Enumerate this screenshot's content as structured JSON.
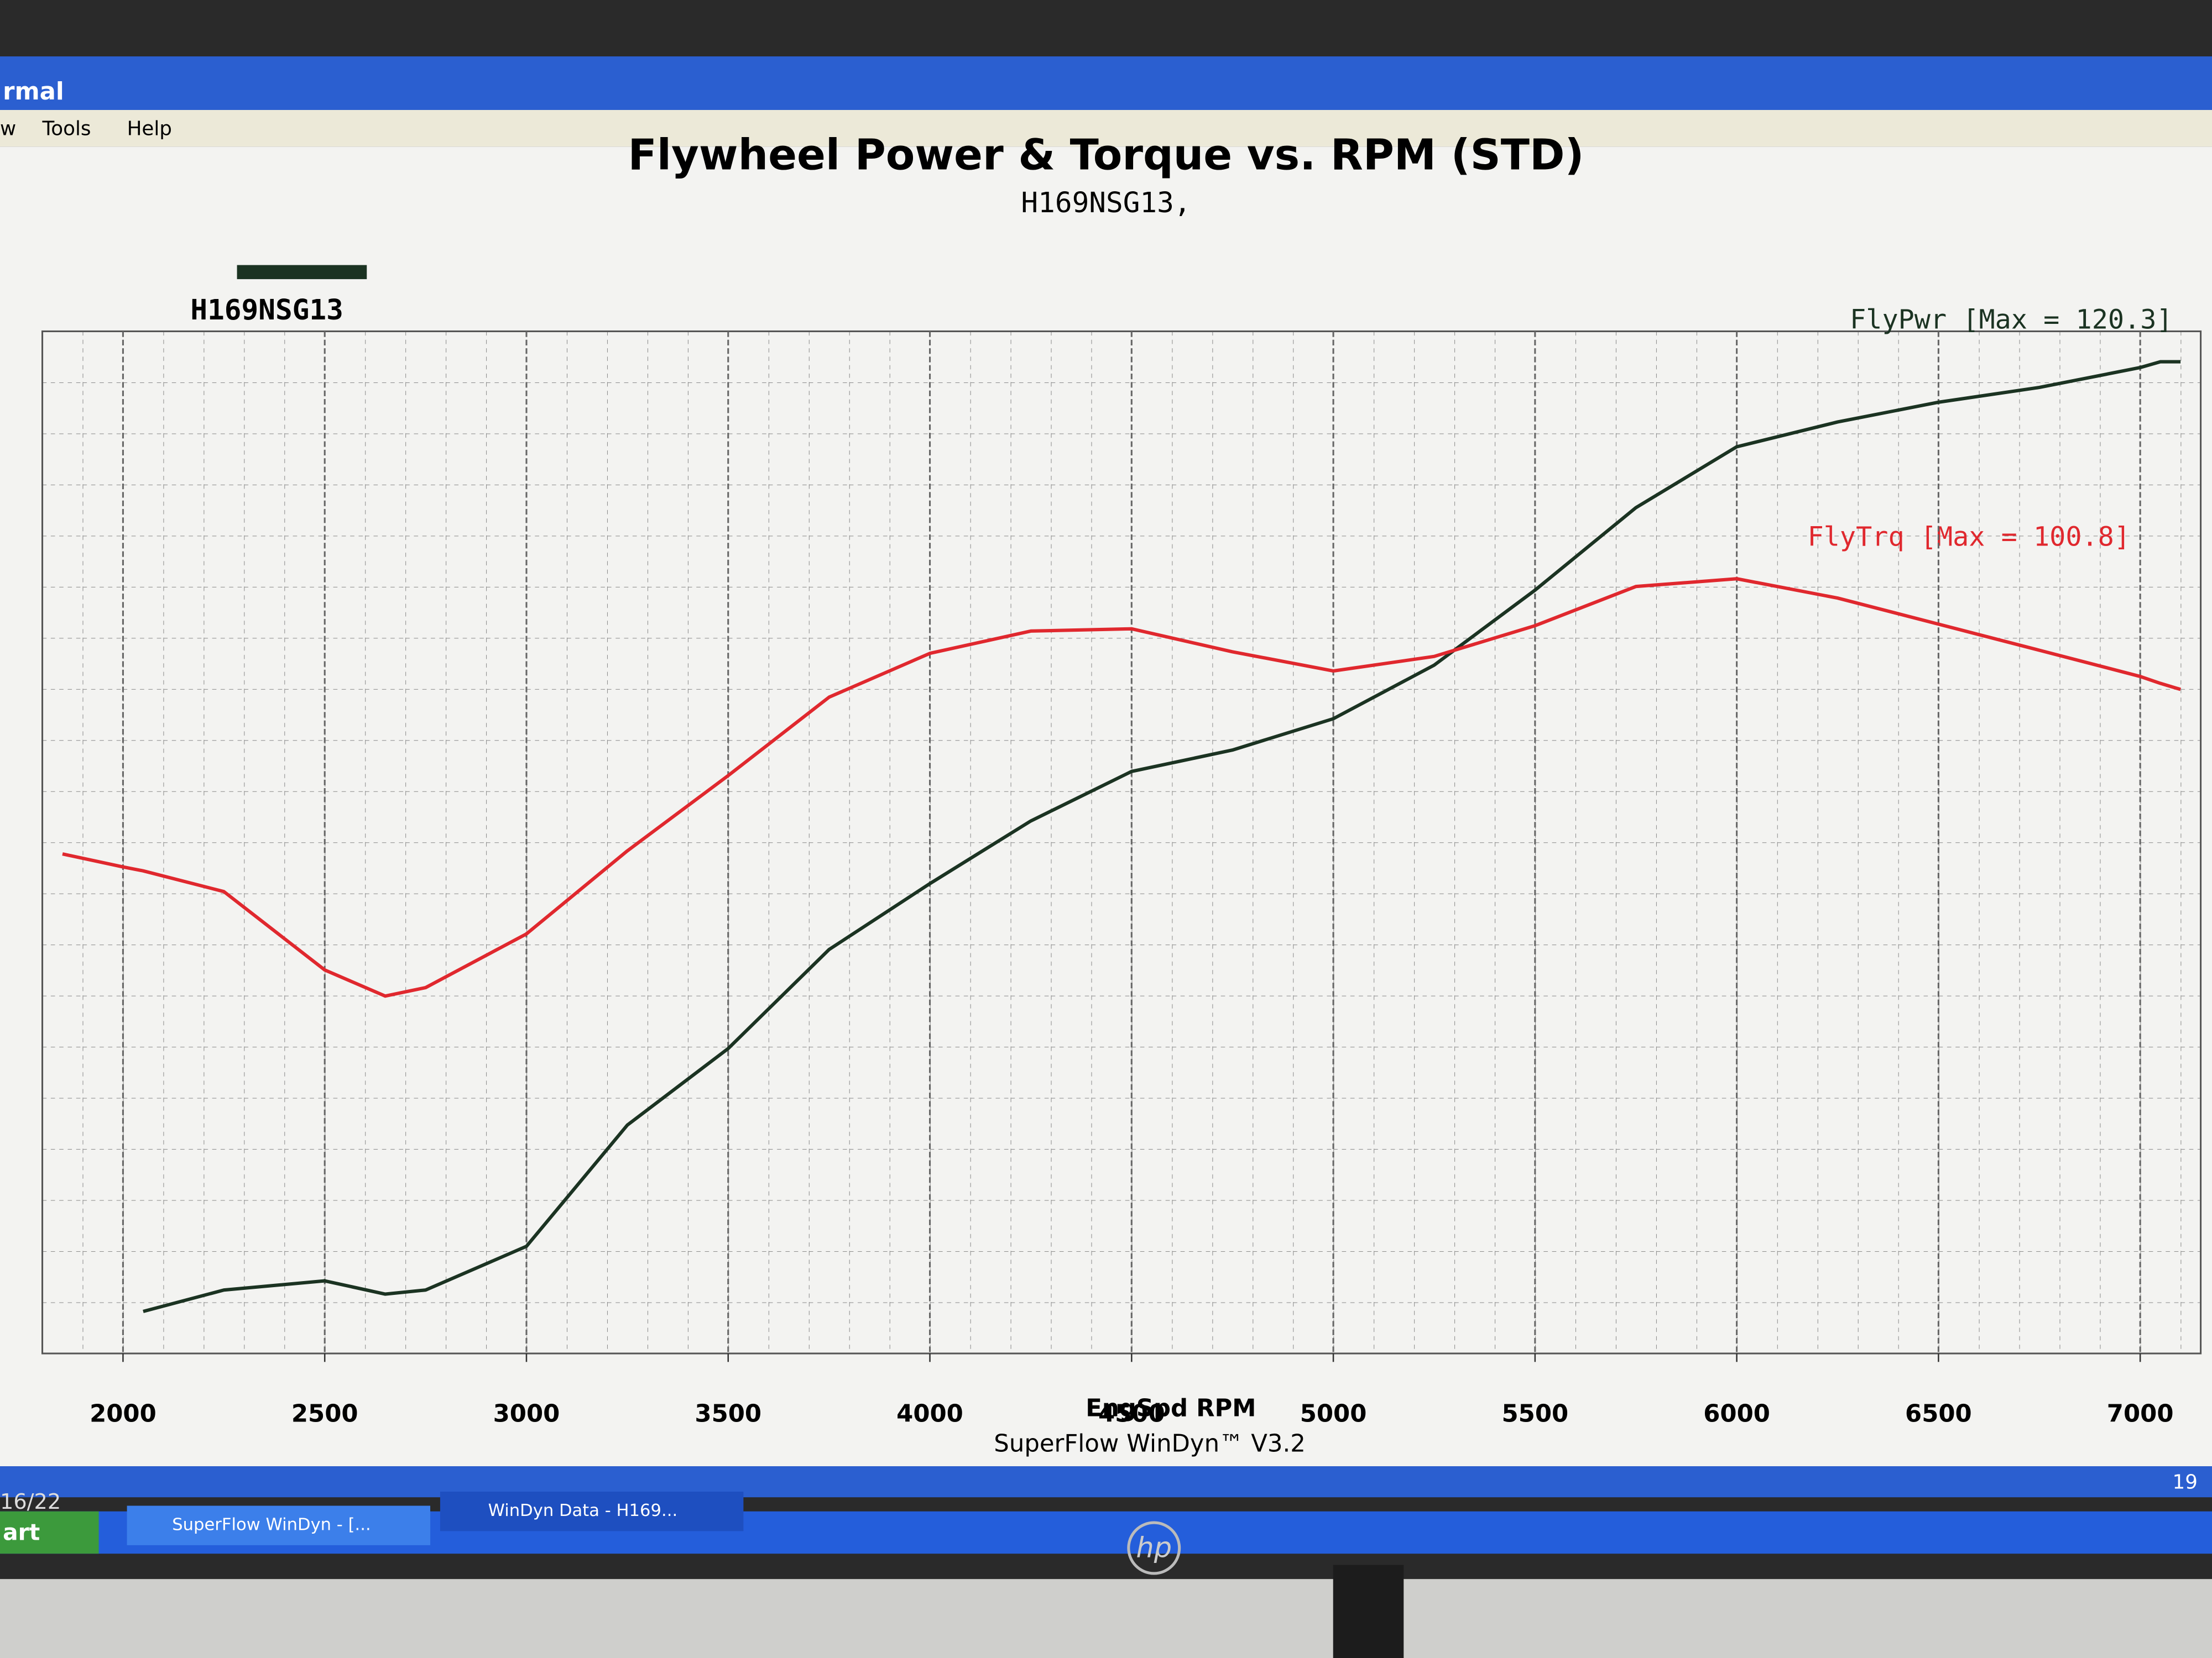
{
  "ui": {
    "window_title": "rmal",
    "menu": [
      "w",
      "Tools",
      "Help"
    ],
    "taskbar": {
      "start": "art",
      "tasks": [
        "SuperFlow WinDyn - [...",
        "WinDyn Data - H169..."
      ],
      "clock": "19",
      "date": "16/22"
    },
    "monitor_logo": "hp"
  },
  "chart_data": {
    "type": "line",
    "title": "Flywheel Power & Torque vs. RPM (STD)",
    "subtitle": "H169NSG13,",
    "legend": "H169NSG13",
    "legend_color": "#1b3322",
    "xlabel": "EngSpd RPM",
    "footer": "SuperFlow WinDyn™ V3.2",
    "annotations": [
      "FlyPwr [Max = 120.3]",
      "FlyTrq [Max = 100.8]"
    ],
    "x": [
      1850,
      2000,
      2050,
      2250,
      2500,
      2650,
      2750,
      3000,
      3250,
      3500,
      3750,
      4000,
      4250,
      4500,
      4750,
      5000,
      5250,
      5500,
      5750,
      6000,
      6250,
      6500,
      6750,
      7000,
      7050,
      7100
    ],
    "series": [
      {
        "name": "FlyPwr",
        "color": "#1b3322",
        "axis": "y",
        "values": [
          null,
          null,
          5.1,
          7.7,
          8.8,
          7.2,
          7.7,
          13,
          27.7,
          37,
          49,
          57,
          64.6,
          70.6,
          73.2,
          77,
          83.5,
          92.6,
          102.6,
          110,
          113,
          115.4,
          117.2,
          119.6,
          120.3,
          120.3
        ]
      },
      {
        "name": "FlyTrq",
        "color": "#e0282e",
        "axis": "y2",
        "values": [
          65,
          63.3,
          62.8,
          60.1,
          49.9,
          46.5,
          47.6,
          54.6,
          65.4,
          75.2,
          85.4,
          91.1,
          94,
          94.3,
          91.3,
          88.8,
          90.7,
          94.7,
          99.8,
          100.8,
          98.3,
          94.9,
          91.5,
          88.1,
          87.2,
          86.4
        ]
      }
    ],
    "xlim": [
      1800,
      7150
    ],
    "xticks": [
      2000,
      2500,
      3000,
      3500,
      4000,
      4500,
      5000,
      5500,
      6000,
      6500,
      7000
    ],
    "ylim": [
      0,
      124
    ],
    "y2lim": [
      0,
      133
    ],
    "grid": true
  }
}
